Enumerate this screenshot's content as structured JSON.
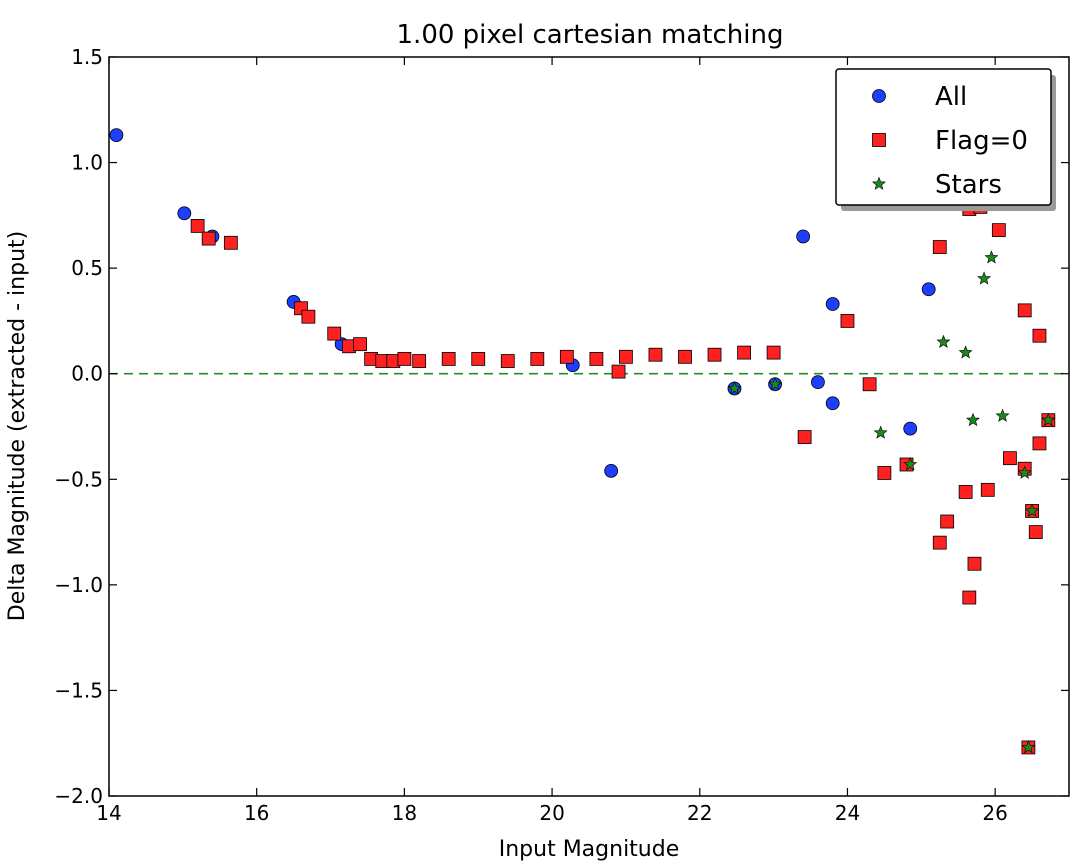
{
  "chart_data": {
    "type": "scatter",
    "title": "1.00 pixel cartesian matching",
    "xlabel": "Input Magnitude",
    "ylabel": "Delta Magnitude (extracted - input)",
    "xlim": [
      14,
      27
    ],
    "ylim": [
      -2.0,
      1.5
    ],
    "xticks": [
      14,
      16,
      18,
      20,
      22,
      24,
      26
    ],
    "yticks": [
      -2.0,
      -1.5,
      -1.0,
      -0.5,
      0.0,
      0.5,
      1.0,
      1.5
    ],
    "xtick_labels": [
      "14",
      "16",
      "18",
      "20",
      "22",
      "24",
      "26"
    ],
    "ytick_labels": [
      "−2.0",
      "−1.5",
      "−1.0",
      "−0.5",
      "0.0",
      "0.5",
      "1.0",
      "1.5"
    ],
    "grid": false,
    "legend_position": "top-right",
    "reference_line": {
      "y": 0.0,
      "style": "dashed",
      "color": "#2a8a2a"
    },
    "series": [
      {
        "name": "All",
        "marker": "circle",
        "color": "#1f3fff",
        "points": [
          [
            14.1,
            1.13
          ],
          [
            15.02,
            0.76
          ],
          [
            15.4,
            0.65
          ],
          [
            16.5,
            0.34
          ],
          [
            17.15,
            0.14
          ],
          [
            20.28,
            0.04
          ],
          [
            20.8,
            -0.46
          ],
          [
            22.47,
            -0.07
          ],
          [
            23.02,
            -0.05
          ],
          [
            23.4,
            0.65
          ],
          [
            23.8,
            0.33
          ],
          [
            23.8,
            -0.14
          ],
          [
            23.6,
            -0.04
          ],
          [
            24.85,
            -0.26
          ],
          [
            25.1,
            0.4
          ]
        ]
      },
      {
        "name": "Flag=0",
        "marker": "square",
        "color": "#ff2020",
        "points": [
          [
            15.2,
            0.7
          ],
          [
            15.35,
            0.64
          ],
          [
            15.65,
            0.62
          ],
          [
            16.6,
            0.31
          ],
          [
            16.7,
            0.27
          ],
          [
            17.05,
            0.19
          ],
          [
            17.25,
            0.13
          ],
          [
            17.4,
            0.14
          ],
          [
            17.55,
            0.07
          ],
          [
            17.7,
            0.06
          ],
          [
            17.85,
            0.06
          ],
          [
            18.0,
            0.07
          ],
          [
            18.2,
            0.06
          ],
          [
            18.6,
            0.07
          ],
          [
            19.0,
            0.07
          ],
          [
            19.4,
            0.06
          ],
          [
            19.8,
            0.07
          ],
          [
            20.2,
            0.08
          ],
          [
            20.6,
            0.07
          ],
          [
            20.9,
            0.01
          ],
          [
            21.0,
            0.08
          ],
          [
            21.4,
            0.09
          ],
          [
            21.8,
            0.08
          ],
          [
            22.2,
            0.09
          ],
          [
            22.6,
            0.1
          ],
          [
            23.0,
            0.1
          ],
          [
            23.42,
            -0.3
          ],
          [
            24.5,
            -0.47
          ],
          [
            24.8,
            -0.43
          ],
          [
            25.25,
            -0.8
          ],
          [
            25.35,
            -0.7
          ],
          [
            25.6,
            -0.56
          ],
          [
            25.65,
            -1.06
          ],
          [
            25.72,
            -0.9
          ],
          [
            25.9,
            -0.55
          ],
          [
            26.2,
            -0.4
          ],
          [
            26.4,
            -0.45
          ],
          [
            26.55,
            -0.75
          ],
          [
            26.6,
            -0.33
          ],
          [
            26.72,
            -0.22
          ],
          [
            26.45,
            -1.77
          ],
          [
            25.25,
            0.6
          ],
          [
            25.65,
            0.78
          ],
          [
            25.8,
            0.79
          ],
          [
            26.05,
            0.68
          ],
          [
            26.4,
            0.3
          ],
          [
            26.6,
            0.18
          ],
          [
            26.5,
            -0.65
          ],
          [
            24.3,
            -0.05
          ],
          [
            24.0,
            0.25
          ]
        ]
      },
      {
        "name": "Stars",
        "marker": "star",
        "color": "#1a8a1a",
        "points": [
          [
            22.47,
            -0.07
          ],
          [
            23.02,
            -0.05
          ],
          [
            24.45,
            -0.28
          ],
          [
            24.85,
            -0.43
          ],
          [
            25.7,
            -0.22
          ],
          [
            26.45,
            -1.77
          ],
          [
            26.5,
            -0.65
          ],
          [
            26.72,
            -0.22
          ],
          [
            26.4,
            -0.47
          ],
          [
            25.85,
            0.45
          ],
          [
            25.6,
            0.1
          ],
          [
            26.1,
            -0.2
          ],
          [
            25.3,
            0.15
          ],
          [
            25.95,
            0.55
          ]
        ]
      }
    ]
  },
  "legend": {
    "items": [
      {
        "label": "All",
        "marker": "circle",
        "color": "#1f3fff"
      },
      {
        "label": "Flag=0",
        "marker": "square",
        "color": "#ff2020"
      },
      {
        "label": "Stars",
        "marker": "star",
        "color": "#1a8a1a"
      }
    ]
  }
}
